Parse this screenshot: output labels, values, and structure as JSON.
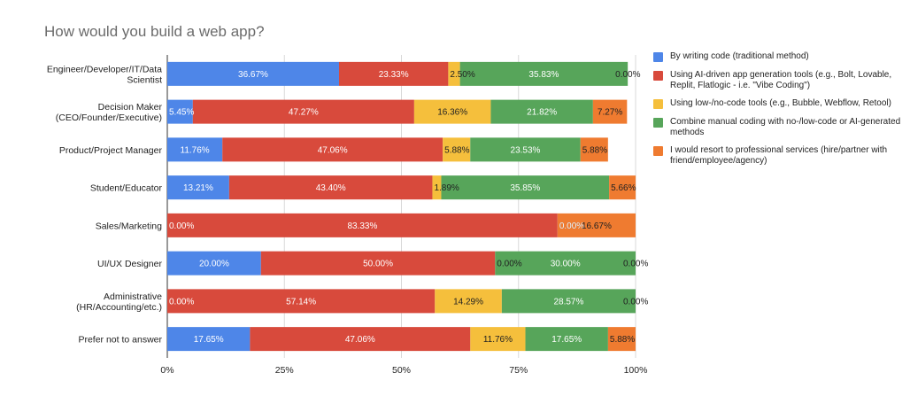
{
  "chart_data": {
    "type": "bar",
    "orientation": "horizontal",
    "stacked": "percent",
    "title": "How would you build a web app?",
    "categories": [
      "Engineer/Developer/IT/Data\nScientist",
      "Decision Maker\n(CEO/Founder/Executive)",
      "Product/Project Manager",
      "Student/Educator",
      "Sales/Marketing",
      "UI/UX Designer",
      "Administrative\n(HR/Accounting/etc.)",
      "Prefer not to answer"
    ],
    "series": [
      {
        "name": "By writing code (traditional method)",
        "color": "#4e86e8",
        "values": [
          36.67,
          5.45,
          11.76,
          13.21,
          0.0,
          20.0,
          0.0,
          17.65
        ],
        "labels": [
          "36.67%",
          "5.45%",
          "11.76%",
          "13.21%",
          "0.00%",
          "20.00%",
          "0.00%",
          "17.65%"
        ]
      },
      {
        "name": "Using AI-driven app generation tools (e.g., Bolt, Lovable, Replit, Flatlogic - i.e. \"Vibe Coding\")",
        "color": "#d84a3c",
        "values": [
          23.33,
          47.27,
          47.06,
          43.4,
          83.33,
          50.0,
          57.14,
          47.06
        ],
        "labels": [
          "23.33%",
          "47.27%",
          "47.06%",
          "43.40%",
          "83.33%",
          "50.00%",
          "57.14%",
          "47.06%"
        ]
      },
      {
        "name": "Using low-/no-code tools (e.g., Bubble, Webflow, Retool)",
        "color": "#f5bf3c",
        "values": [
          2.5,
          16.36,
          5.88,
          1.89,
          0.0,
          0.0,
          14.29,
          11.76
        ],
        "labels": [
          "2.50%",
          "16.36%",
          "5.88%",
          "1.89%",
          "0.00%",
          "0.00%",
          "14.29%",
          "11.76%"
        ]
      },
      {
        "name": "Combine manual coding with no-/low-code or AI-generated methods",
        "color": "#57a55a",
        "values": [
          35.83,
          21.82,
          23.53,
          35.85,
          0.0,
          30.0,
          28.57,
          17.65
        ],
        "labels": [
          "35.83%",
          "21.82%",
          "23.53%",
          "35.85%",
          "0.00%",
          "30.00%",
          "28.57%",
          "17.65%"
        ]
      },
      {
        "name": "I would resort to professional services (hire/partner with friend/employee/agency)",
        "color": "#ef7b30",
        "values": [
          0.0,
          7.27,
          5.88,
          5.66,
          16.67,
          0.0,
          0.0,
          5.88
        ],
        "labels": [
          "0.00%",
          "7.27%",
          "5.88%",
          "5.66%",
          "16.67%",
          "0.00%",
          "0.00%",
          "5.88%"
        ]
      }
    ],
    "x_ticks": [
      "0%",
      "25%",
      "50%",
      "75%",
      "100%"
    ],
    "xlim": [
      0,
      100
    ],
    "grid": true,
    "legend_position": "right"
  }
}
